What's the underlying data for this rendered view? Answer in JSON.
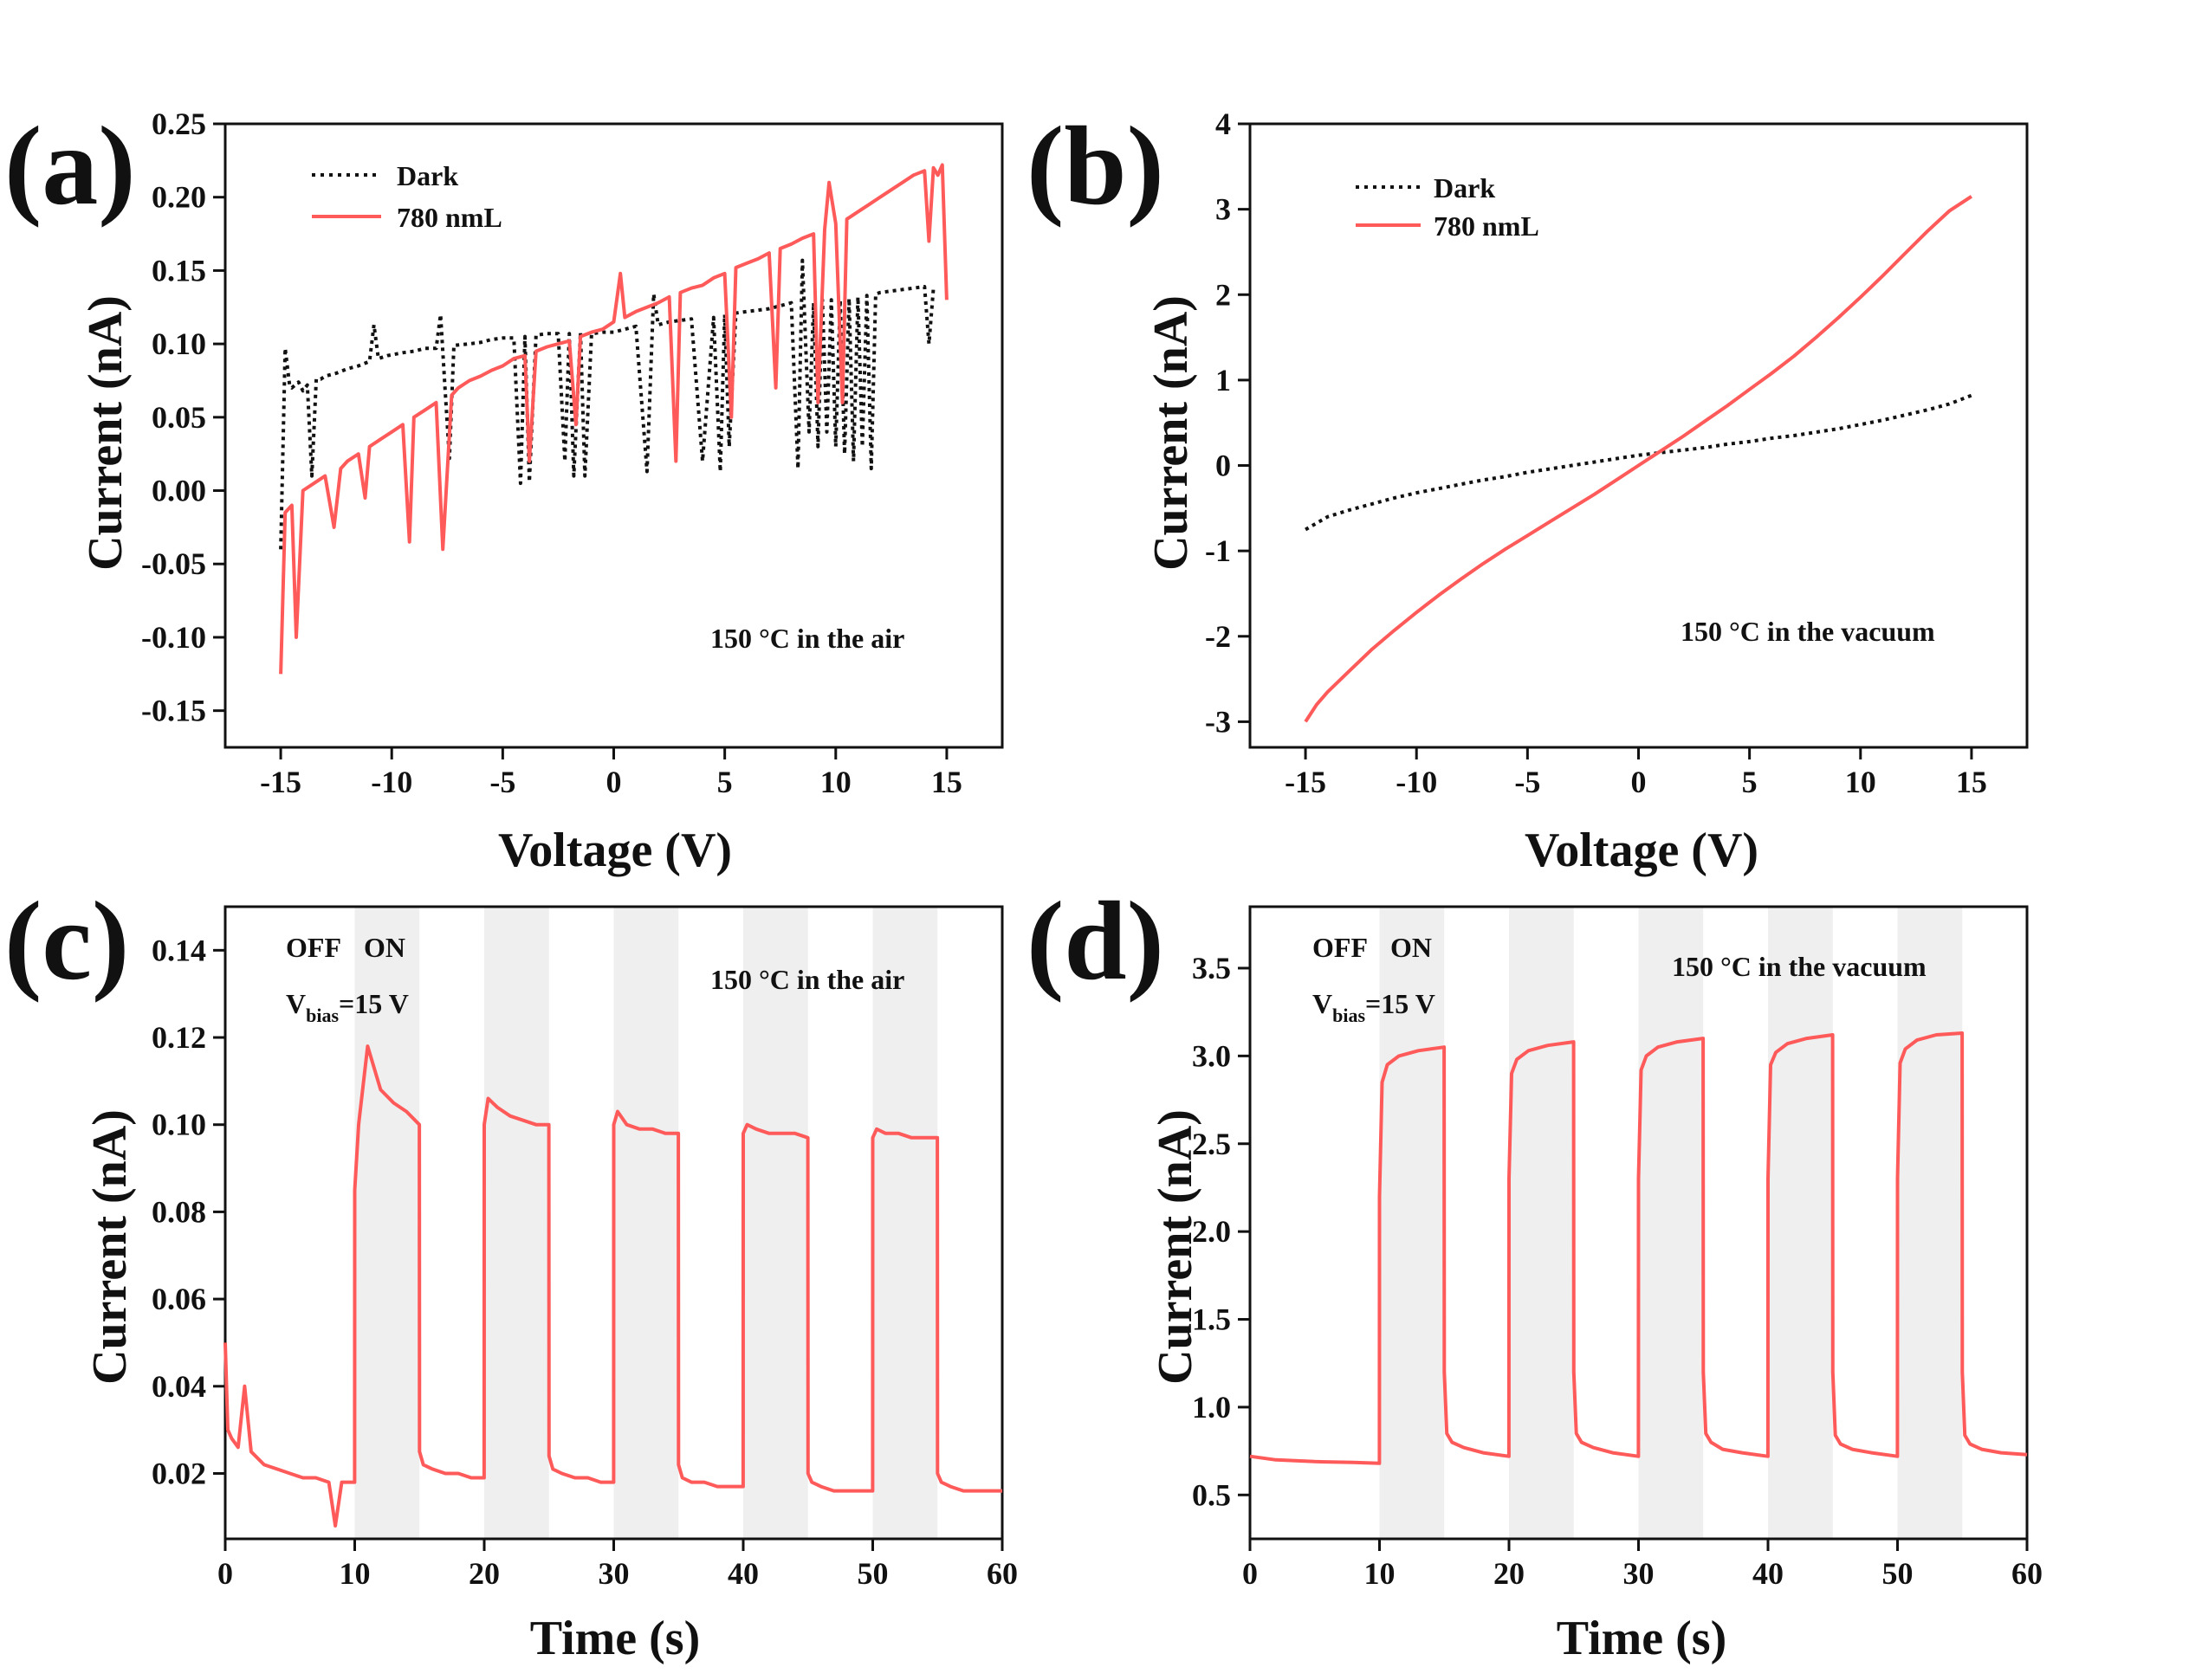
{
  "figure": {
    "colors": {
      "light": "#ff5a5a",
      "dark": "#111111",
      "shade": "#efefef"
    }
  },
  "chart_data": [
    {
      "id": "a",
      "type": "line",
      "panel_label": "(a)",
      "xlabel": "Voltage (V)",
      "ylabel": "Current (nA)",
      "xlim": [
        -17.5,
        17.5
      ],
      "ylim": [
        -0.175,
        0.25
      ],
      "xticks": [
        -15,
        -10,
        -5,
        0,
        5,
        10,
        15
      ],
      "xtick_labels": [
        "-15",
        "-10",
        "-5",
        "0",
        "5",
        "10",
        "15"
      ],
      "yticks": [
        -0.15,
        -0.1,
        -0.05,
        0.0,
        0.05,
        0.1,
        0.15,
        0.2,
        0.25
      ],
      "ytick_labels": [
        "-0.15",
        "-0.10",
        "-0.05",
        "0.00",
        "0.05",
        "0.10",
        "0.15",
        "0.20",
        "0.25"
      ],
      "annotation": "150 °C in the air",
      "legend": [
        "Dark",
        "780 nmL"
      ],
      "series": [
        {
          "name": "Dark",
          "style": "dotted",
          "x": [
            -15.0,
            -14.8,
            -14.6,
            -14.5,
            -14.2,
            -14.0,
            -13.8,
            -13.6,
            -13.4,
            -13.2,
            -13.0,
            -12.5,
            -12.0,
            -11.5,
            -11.0,
            -10.8,
            -10.6,
            -10.2,
            -9.5,
            -9.0,
            -8.5,
            -8.0,
            -7.8,
            -7.6,
            -7.4,
            -7.2,
            -6.5,
            -6.0,
            -5.5,
            -5.0,
            -4.5,
            -4.2,
            -4.0,
            -3.8,
            -3.5,
            -3.0,
            -2.5,
            -2.2,
            -2.0,
            -1.8,
            -1.5,
            -1.3,
            -1.0,
            -0.5,
            0.0,
            0.5,
            1.0,
            1.5,
            1.8,
            2.0,
            2.5,
            3.0,
            3.5,
            4.0,
            4.5,
            4.8,
            5.0,
            5.2,
            5.5,
            6.0,
            6.5,
            7.0,
            7.5,
            8.0,
            8.3,
            8.5,
            8.8,
            9.0,
            9.2,
            9.4,
            9.6,
            9.8,
            10.0,
            10.2,
            10.4,
            10.6,
            10.8,
            11.0,
            11.2,
            11.4,
            11.6,
            11.8,
            12.0,
            12.5,
            13.0,
            13.5,
            14.0,
            14.2,
            14.4
          ],
          "y": [
            -0.04,
            0.097,
            0.072,
            0.07,
            0.074,
            0.068,
            0.072,
            0.01,
            0.076,
            0.076,
            0.078,
            0.08,
            0.083,
            0.085,
            0.088,
            0.113,
            0.09,
            0.092,
            0.094,
            0.095,
            0.097,
            0.097,
            0.12,
            0.07,
            0.022,
            0.099,
            0.1,
            0.101,
            0.103,
            0.104,
            0.104,
            0.005,
            0.105,
            0.006,
            0.106,
            0.107,
            0.107,
            0.02,
            0.107,
            0.01,
            0.108,
            0.01,
            0.107,
            0.108,
            0.108,
            0.11,
            0.112,
            0.013,
            0.134,
            0.113,
            0.115,
            0.116,
            0.117,
            0.02,
            0.118,
            0.013,
            0.12,
            0.03,
            0.121,
            0.122,
            0.123,
            0.124,
            0.126,
            0.128,
            0.015,
            0.157,
            0.04,
            0.128,
            0.03,
            0.13,
            0.04,
            0.13,
            0.03,
            0.13,
            0.025,
            0.131,
            0.02,
            0.132,
            0.03,
            0.133,
            0.015,
            0.134,
            0.135,
            0.136,
            0.137,
            0.138,
            0.139,
            0.1,
            0.138
          ]
        },
        {
          "name": "780 nmL",
          "style": "solid",
          "x": [
            -15.0,
            -14.8,
            -14.5,
            -14.3,
            -14.0,
            -13.5,
            -13.0,
            -12.6,
            -12.3,
            -12.0,
            -11.5,
            -11.2,
            -11.0,
            -10.5,
            -10.0,
            -9.5,
            -9.2,
            -9.0,
            -8.5,
            -8.0,
            -7.7,
            -7.3,
            -7.0,
            -6.5,
            -6.0,
            -5.5,
            -5.0,
            -4.5,
            -4.0,
            -3.8,
            -3.5,
            -3.0,
            -2.5,
            -2.0,
            -1.7,
            -1.5,
            -1.0,
            -0.5,
            0.0,
            0.3,
            0.5,
            1.0,
            1.5,
            2.0,
            2.5,
            2.8,
            3.0,
            3.5,
            4.0,
            4.5,
            5.0,
            5.3,
            5.5,
            6.0,
            6.5,
            7.0,
            7.3,
            7.5,
            8.0,
            8.5,
            9.0,
            9.2,
            9.5,
            9.7,
            10.0,
            10.3,
            10.5,
            11.0,
            11.5,
            12.0,
            12.5,
            13.0,
            13.5,
            14.0,
            14.2,
            14.4,
            14.6,
            14.8,
            15.0
          ],
          "y": [
            -0.125,
            -0.015,
            -0.01,
            -0.1,
            0.0,
            0.005,
            0.01,
            -0.025,
            0.015,
            0.02,
            0.025,
            -0.005,
            0.03,
            0.035,
            0.04,
            0.045,
            -0.035,
            0.05,
            0.055,
            0.06,
            -0.04,
            0.065,
            0.07,
            0.075,
            0.078,
            0.082,
            0.085,
            0.09,
            0.092,
            0.02,
            0.095,
            0.098,
            0.1,
            0.102,
            0.045,
            0.105,
            0.108,
            0.11,
            0.115,
            0.148,
            0.118,
            0.122,
            0.125,
            0.128,
            0.132,
            0.02,
            0.135,
            0.138,
            0.14,
            0.145,
            0.148,
            0.05,
            0.152,
            0.155,
            0.158,
            0.162,
            0.07,
            0.165,
            0.168,
            0.172,
            0.175,
            0.06,
            0.178,
            0.21,
            0.182,
            0.06,
            0.185,
            0.19,
            0.195,
            0.2,
            0.205,
            0.21,
            0.215,
            0.218,
            0.17,
            0.22,
            0.215,
            0.222,
            0.13
          ]
        }
      ]
    },
    {
      "id": "b",
      "type": "line",
      "panel_label": "(b)",
      "xlabel": "Voltage (V)",
      "ylabel": "Current (nA)",
      "xlim": [
        -17.5,
        17.5
      ],
      "ylim": [
        -3.3,
        4
      ],
      "xticks": [
        -15,
        -10,
        -5,
        0,
        5,
        10,
        15
      ],
      "xtick_labels": [
        "-15",
        "-10",
        "-5",
        "0",
        "5",
        "10",
        "15"
      ],
      "yticks": [
        -3,
        -2,
        -1,
        0,
        1,
        2,
        3,
        4
      ],
      "ytick_labels": [
        "-3",
        "-2",
        "-1",
        "0",
        "1",
        "2",
        "3",
        "4"
      ],
      "annotation": "150 °C in the vacuum",
      "legend": [
        "Dark",
        "780 nmL"
      ],
      "series": [
        {
          "name": "Dark",
          "style": "dotted",
          "x": [
            -15,
            -14,
            -13,
            -12,
            -11,
            -10,
            -9,
            -8,
            -7,
            -6,
            -5,
            -4,
            -3,
            -2,
            -1,
            0,
            1,
            2,
            3,
            4,
            5,
            6,
            7,
            8,
            9,
            10,
            11,
            12,
            13,
            14,
            15
          ],
          "y": [
            -0.75,
            -0.6,
            -0.52,
            -0.45,
            -0.38,
            -0.32,
            -0.27,
            -0.22,
            -0.17,
            -0.13,
            -0.08,
            -0.04,
            0.0,
            0.04,
            0.08,
            0.12,
            0.15,
            0.18,
            0.21,
            0.25,
            0.28,
            0.32,
            0.35,
            0.39,
            0.43,
            0.48,
            0.53,
            0.59,
            0.65,
            0.72,
            0.82
          ]
        },
        {
          "name": "780 nmL",
          "style": "solid",
          "x": [
            -15,
            -14.5,
            -14,
            -13,
            -12,
            -11,
            -10,
            -9,
            -8,
            -7,
            -6,
            -5,
            -4,
            -3,
            -2,
            -1,
            0,
            1,
            2,
            3,
            4,
            5,
            6,
            7,
            8,
            9,
            10,
            11,
            12,
            13,
            14,
            15
          ],
          "y": [
            -3.0,
            -2.8,
            -2.65,
            -2.4,
            -2.15,
            -1.93,
            -1.72,
            -1.52,
            -1.33,
            -1.15,
            -0.98,
            -0.82,
            -0.66,
            -0.5,
            -0.34,
            -0.17,
            0.0,
            0.17,
            0.34,
            0.52,
            0.7,
            0.89,
            1.08,
            1.28,
            1.5,
            1.73,
            1.97,
            2.22,
            2.48,
            2.74,
            2.98,
            3.15
          ]
        }
      ]
    },
    {
      "id": "c",
      "type": "line",
      "panel_label": "(c)",
      "xlabel": "Time (s)",
      "ylabel": "Current (nA)",
      "xlim": [
        0,
        60
      ],
      "ylim": [
        0.005,
        0.15
      ],
      "xticks": [
        0,
        10,
        20,
        30,
        40,
        50,
        60
      ],
      "xtick_labels": [
        "0",
        "10",
        "20",
        "30",
        "40",
        "50",
        "60"
      ],
      "yticks": [
        0.02,
        0.04,
        0.06,
        0.08,
        0.1,
        0.12,
        0.14
      ],
      "ytick_labels": [
        "0.02",
        "0.04",
        "0.06",
        "0.08",
        "0.10",
        "0.12",
        "0.14"
      ],
      "annotation": "150 °C in the air",
      "switch_labels": [
        "OFF",
        "ON"
      ],
      "bias_label": {
        "main": "V",
        "sub": "bias",
        "rest": "=15 V"
      },
      "on_intervals": [
        [
          10,
          15
        ],
        [
          20,
          25
        ],
        [
          30,
          35
        ],
        [
          40,
          45
        ],
        [
          50,
          55
        ]
      ],
      "shade_intervals": [
        [
          10,
          15
        ],
        [
          20,
          25
        ],
        [
          30,
          35
        ],
        [
          40,
          45
        ],
        [
          50,
          55
        ]
      ],
      "series": [
        {
          "name": "780 nmL",
          "style": "solid",
          "x": [
            0,
            0.2,
            0.5,
            1,
            1.5,
            2,
            3,
            4,
            5,
            6,
            7,
            8,
            8.5,
            9,
            9.99,
            10,
            10.3,
            11,
            12,
            13,
            14,
            14.99,
            15,
            15.3,
            16,
            17,
            18,
            19,
            19.99,
            20,
            20.3,
            21,
            22,
            23,
            24,
            24.99,
            25,
            25.3,
            26,
            27,
            28,
            29,
            29.99,
            30,
            30.3,
            31,
            32,
            33,
            34,
            34.99,
            35,
            35.3,
            36,
            37,
            38,
            39,
            39.99,
            40,
            40.3,
            41,
            42,
            43,
            44,
            44.99,
            45,
            45.3,
            46,
            47,
            48,
            49,
            49.99,
            50,
            50.3,
            51,
            52,
            53,
            54,
            54.99,
            55,
            55.3,
            56,
            57,
            58,
            59,
            60
          ],
          "y": [
            0.05,
            0.03,
            0.028,
            0.026,
            0.04,
            0.025,
            0.022,
            0.021,
            0.02,
            0.019,
            0.019,
            0.018,
            0.008,
            0.018,
            0.018,
            0.085,
            0.1,
            0.118,
            0.108,
            0.105,
            0.103,
            0.1,
            0.025,
            0.022,
            0.021,
            0.02,
            0.02,
            0.019,
            0.019,
            0.1,
            0.106,
            0.104,
            0.102,
            0.101,
            0.1,
            0.1,
            0.024,
            0.021,
            0.02,
            0.019,
            0.019,
            0.018,
            0.018,
            0.1,
            0.103,
            0.1,
            0.099,
            0.099,
            0.098,
            0.098,
            0.022,
            0.019,
            0.018,
            0.018,
            0.017,
            0.017,
            0.017,
            0.098,
            0.1,
            0.099,
            0.098,
            0.098,
            0.098,
            0.097,
            0.02,
            0.018,
            0.017,
            0.016,
            0.016,
            0.016,
            0.016,
            0.097,
            0.099,
            0.098,
            0.098,
            0.097,
            0.097,
            0.097,
            0.02,
            0.018,
            0.017,
            0.016,
            0.016,
            0.016,
            0.016
          ]
        }
      ]
    },
    {
      "id": "d",
      "type": "line",
      "panel_label": "(d)",
      "xlabel": "Time (s)",
      "ylabel": "Current (nA)",
      "xlim": [
        0,
        60
      ],
      "ylim": [
        0.25,
        3.85
      ],
      "xticks": [
        0,
        10,
        20,
        30,
        40,
        50,
        60
      ],
      "xtick_labels": [
        "0",
        "10",
        "20",
        "30",
        "40",
        "50",
        "60"
      ],
      "yticks": [
        0.5,
        1.0,
        1.5,
        2.0,
        2.5,
        3.0,
        3.5
      ],
      "ytick_labels": [
        "0.5",
        "1.0",
        "1.5",
        "2.0",
        "2.5",
        "3.0",
        "3.5"
      ],
      "annotation": "150 °C in the vacuum",
      "switch_labels": [
        "OFF",
        "ON"
      ],
      "bias_label": {
        "main": "V",
        "sub": "bias",
        "rest": "=15 V"
      },
      "on_intervals": [
        [
          10,
          15
        ],
        [
          20,
          25
        ],
        [
          30,
          35
        ],
        [
          40,
          45
        ],
        [
          50,
          55
        ]
      ],
      "shade_intervals": [
        [
          10,
          15
        ],
        [
          20,
          25
        ],
        [
          30,
          35
        ],
        [
          40,
          45
        ],
        [
          50,
          55
        ]
      ],
      "series": [
        {
          "name": "780 nmL",
          "style": "solid",
          "x": [
            0,
            2,
            5,
            8,
            9.99,
            10,
            10.2,
            10.6,
            11.5,
            13,
            14.99,
            15,
            15.2,
            15.6,
            16.5,
            18,
            19.99,
            20,
            20.2,
            20.6,
            21.5,
            23,
            24.99,
            25,
            25.2,
            25.6,
            26.5,
            28,
            29.99,
            30,
            30.2,
            30.6,
            31.5,
            33,
            34.99,
            35,
            35.2,
            35.6,
            36.5,
            38,
            39.99,
            40,
            40.2,
            40.6,
            41.5,
            43,
            44.99,
            45,
            45.2,
            45.6,
            46.5,
            48,
            49.99,
            50,
            50.2,
            50.6,
            51.5,
            53,
            54.99,
            55,
            55.2,
            55.6,
            56.5,
            58,
            60
          ],
          "y": [
            0.72,
            0.7,
            0.69,
            0.685,
            0.68,
            2.2,
            2.85,
            2.95,
            3.0,
            3.03,
            3.05,
            1.2,
            0.85,
            0.8,
            0.77,
            0.74,
            0.72,
            2.3,
            2.9,
            2.98,
            3.03,
            3.06,
            3.08,
            1.2,
            0.85,
            0.8,
            0.77,
            0.74,
            0.72,
            2.3,
            2.92,
            3.0,
            3.05,
            3.08,
            3.1,
            1.2,
            0.85,
            0.8,
            0.76,
            0.74,
            0.72,
            2.3,
            2.95,
            3.02,
            3.07,
            3.1,
            3.12,
            1.2,
            0.84,
            0.79,
            0.76,
            0.74,
            0.72,
            2.3,
            2.96,
            3.04,
            3.09,
            3.12,
            3.13,
            1.2,
            0.84,
            0.79,
            0.76,
            0.74,
            0.73
          ]
        }
      ]
    }
  ]
}
